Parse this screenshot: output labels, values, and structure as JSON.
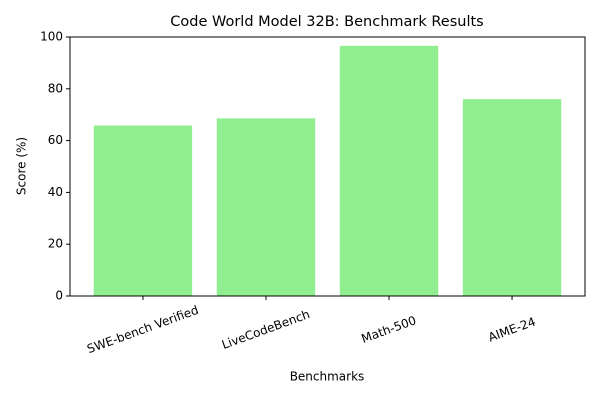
{
  "chart_data": {
    "type": "bar",
    "title": "Code World Model 32B: Benchmark Results",
    "x_label": "Benchmarks",
    "y_label": "Score (%)",
    "categories": [
      "SWE-bench Verified",
      "LiveCodeBench",
      "Math-500",
      "AIME-24"
    ],
    "values": [
      65.8,
      68.6,
      96.6,
      76.0
    ],
    "color": "#90ee90",
    "ylim": [
      0,
      100
    ],
    "yticks": [
      0,
      20,
      40,
      60,
      80,
      100
    ],
    "grid": false
  }
}
